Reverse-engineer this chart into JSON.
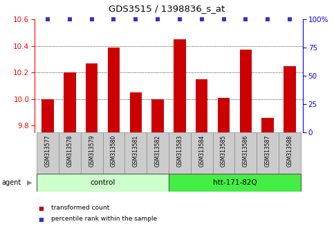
{
  "title": "GDS3515 / 1398836_s_at",
  "samples": [
    "GSM313577",
    "GSM313578",
    "GSM313579",
    "GSM313580",
    "GSM313581",
    "GSM313582",
    "GSM313583",
    "GSM313584",
    "GSM313585",
    "GSM313586",
    "GSM313587",
    "GSM313588"
  ],
  "bar_values": [
    10.0,
    10.2,
    10.27,
    10.39,
    10.05,
    10.0,
    10.45,
    10.15,
    10.01,
    10.37,
    9.86,
    10.25
  ],
  "bar_color": "#cc0000",
  "percentile_color": "#3333cc",
  "ylim_left": [
    9.75,
    10.6
  ],
  "ylim_right": [
    0,
    100
  ],
  "yticks_left": [
    9.8,
    10.0,
    10.2,
    10.4,
    10.6
  ],
  "yticks_right": [
    0,
    25,
    50,
    75,
    100
  ],
  "grid_yticks": [
    10.0,
    10.2,
    10.4
  ],
  "groups": [
    {
      "label": "control",
      "start": 0,
      "end": 6,
      "color": "#ccffcc"
    },
    {
      "label": "htt-171-82Q",
      "start": 6,
      "end": 12,
      "color": "#44ee44"
    }
  ],
  "agent_label": "agent",
  "legend_items": [
    {
      "label": "transformed count",
      "color": "#cc0000"
    },
    {
      "label": "percentile rank within the sample",
      "color": "#3333cc"
    }
  ],
  "sample_box_color": "#cccccc",
  "bar_width": 0.55
}
